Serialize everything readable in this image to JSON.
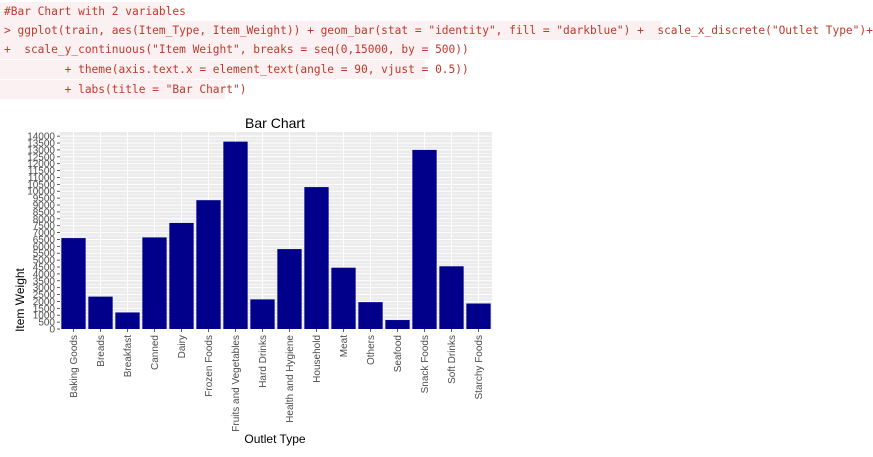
{
  "code": {
    "comment": "#Bar Chart with 2 variables",
    "line1": "> ggplot(train, aes(Item_Type, Item_Weight)) + geom_bar(stat = \"identity\", fill = \"darkblue\") +  scale_x_discrete(\"Outlet Type\")+",
    "line2": "+  scale_y_continuous(\"Item Weight\", breaks = seq(0,15000, by = 500))",
    "line3": "         + theme(axis.text.x = element_text(angle = 90, vjust = 0.5))",
    "line4": "         + labs(title = \"Bar Chart\")"
  },
  "colors": {
    "bar": "#00008b",
    "panel": "#ebebeb",
    "grid": "#ffffff",
    "code_text": "#c0392b",
    "code_bg": "#fbf1f3"
  },
  "chart_data": {
    "type": "bar",
    "title": "Bar Chart",
    "xlabel": "Outlet Type",
    "ylabel": "Item Weight",
    "categories": [
      "Baking Goods",
      "Breads",
      "Breakfast",
      "Canned",
      "Dairy",
      "Frozen Foods",
      "Fruits and Vegetables",
      "Hard Drinks",
      "Health and Hygiene",
      "Household",
      "Meat",
      "Others",
      "Seafood",
      "Snack Foods",
      "Soft Drinks",
      "Starchy Foods"
    ],
    "values": [
      6600,
      2350,
      1200,
      6650,
      7700,
      9350,
      13600,
      2150,
      5800,
      10300,
      4450,
      1950,
      650,
      13000,
      4550,
      1850
    ],
    "yticks": [
      0,
      500,
      1000,
      1500,
      2000,
      2500,
      3000,
      3500,
      4000,
      4500,
      5000,
      5500,
      6000,
      6500,
      7000,
      7500,
      8000,
      8500,
      9000,
      9500,
      10000,
      10500,
      11000,
      11500,
      12000,
      12500,
      13000,
      13500,
      14000
    ],
    "ylim": [
      0,
      14300
    ],
    "grid": true,
    "legend": "none"
  }
}
